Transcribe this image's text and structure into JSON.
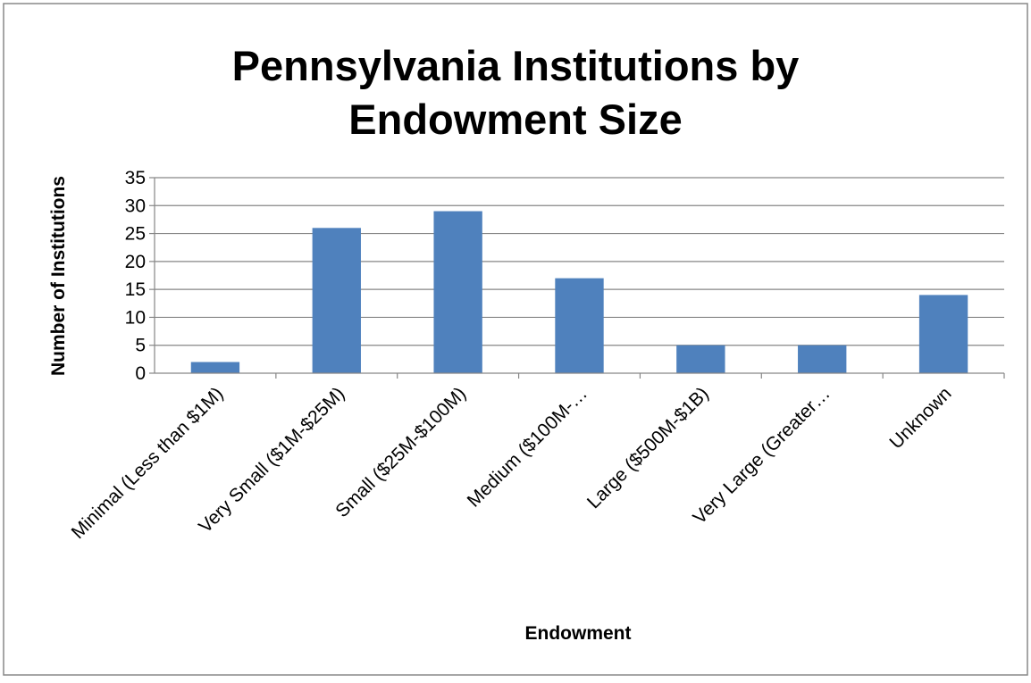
{
  "chart_data": {
    "type": "bar",
    "title_lines": [
      "Pennsylvania Institutions by",
      "Endowment Size"
    ],
    "xlabel": "Endowment",
    "ylabel": "Number of Institutions",
    "categories": [
      "Minimal (Less than $1M)",
      "Very Small ($1M-$25M)",
      "Small ($25M-$100M)",
      "Medium ($100M-…",
      "Large ($500M-$1B)",
      "Very Large (Greater…",
      "Unknown"
    ],
    "values": [
      2,
      26,
      29,
      17,
      5,
      5,
      14
    ],
    "ylim": [
      0,
      35
    ],
    "yticks": [
      "0",
      "5",
      "10",
      "15",
      "20",
      "25",
      "30",
      "35"
    ],
    "grid": true,
    "legend": "none",
    "bar_color": "#4f81bd"
  }
}
